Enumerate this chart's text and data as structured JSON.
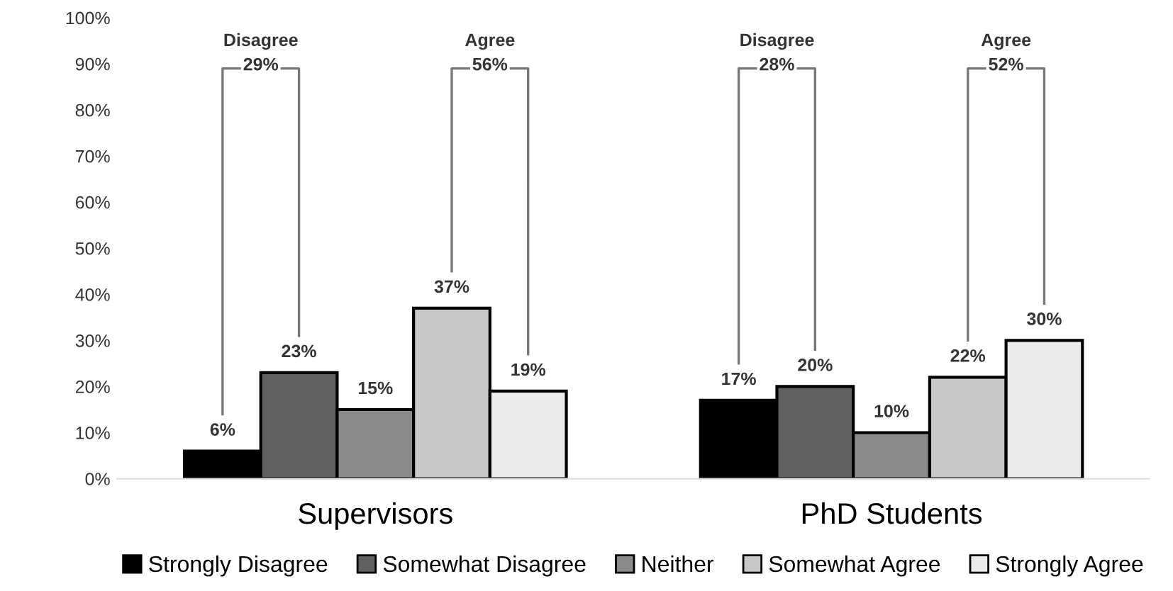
{
  "chart_data": {
    "type": "bar",
    "categories": [
      "Supervisors",
      "PhD Students"
    ],
    "series": [
      {
        "name": "Strongly Disagree",
        "color": "#000000",
        "values": [
          6,
          17
        ],
        "value_labels": [
          "6%",
          "17%"
        ]
      },
      {
        "name": "Somewhat Disagree",
        "color": "#606060",
        "values": [
          23,
          20
        ],
        "value_labels": [
          "23%",
          "20%"
        ]
      },
      {
        "name": "Neither",
        "color": "#8a8a8a",
        "values": [
          15,
          10
        ],
        "value_labels": [
          "15%",
          "10%"
        ]
      },
      {
        "name": "Somewhat Agree",
        "color": "#c8c8c8",
        "values": [
          37,
          22
        ],
        "value_labels": [
          "37%",
          "22%"
        ]
      },
      {
        "name": "Strongly Agree",
        "color": "#ebebeb",
        "values": [
          19,
          30
        ],
        "value_labels": [
          "19%",
          "30%"
        ]
      }
    ],
    "ylim": [
      0,
      100
    ],
    "yticks": [
      {
        "value": 0,
        "label": "0%"
      },
      {
        "value": 10,
        "label": "10%"
      },
      {
        "value": 20,
        "label": "20%"
      },
      {
        "value": 30,
        "label": "30%"
      },
      {
        "value": 40,
        "label": "40%"
      },
      {
        "value": 50,
        "label": "50%"
      },
      {
        "value": 60,
        "label": "60%"
      },
      {
        "value": 70,
        "label": "70%"
      },
      {
        "value": 80,
        "label": "80%"
      },
      {
        "value": 90,
        "label": "90%"
      },
      {
        "value": 100,
        "label": "100%"
      }
    ],
    "grid": false,
    "legend": "bottom",
    "annotations": [
      "Disagree\n29%",
      "Agree\n56%",
      "Disagree\n28%",
      "Agree\n52%"
    ]
  }
}
